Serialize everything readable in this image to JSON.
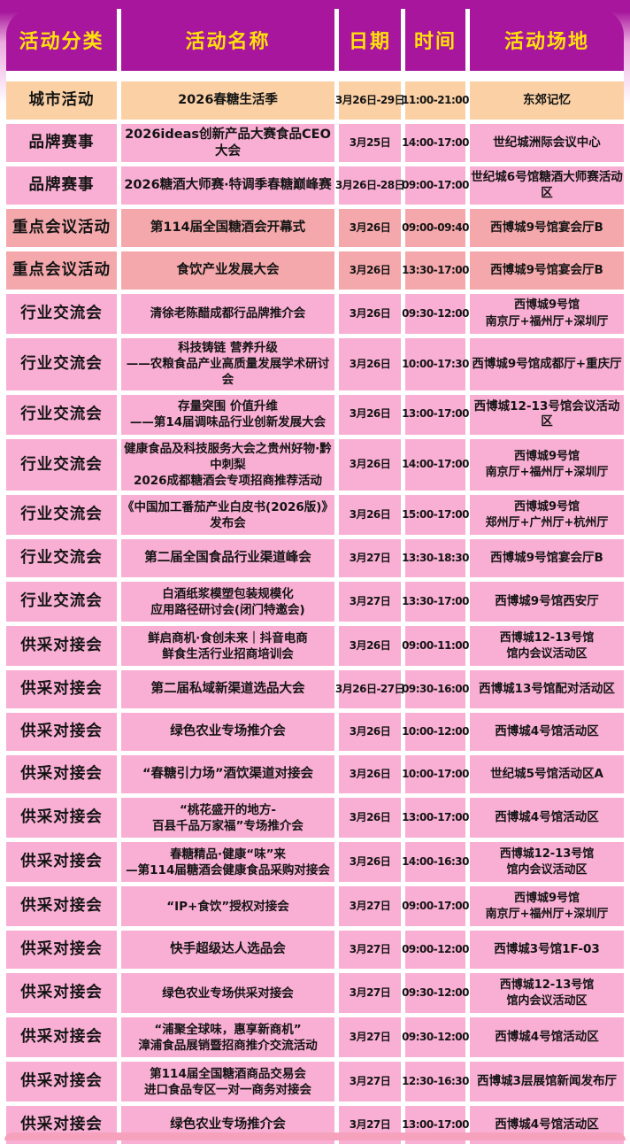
{
  "colors": {
    "header_bg": "#A7169D",
    "header_text": "#FFE10A",
    "row_pink": "#F9AED3",
    "row_peach": "#FAD0A4",
    "row_salmon": "#F5A8AC",
    "cell_text": "#141414",
    "page_bg": "#FFFFFF",
    "bottom_strip": "#F6A2BC"
  },
  "table": {
    "columns": [
      {
        "key": "category",
        "label": "活动分类"
      },
      {
        "key": "name",
        "label": "活动名称"
      },
      {
        "key": "date",
        "label": "日期"
      },
      {
        "key": "time",
        "label": "时间"
      },
      {
        "key": "venue",
        "label": "活动场地"
      }
    ],
    "rows": [
      {
        "tone": "peach",
        "category": "城市活动",
        "name_lines": [
          "2026春糖生活季"
        ],
        "date": "3月26日-29日",
        "time": "11:00-21:00",
        "venue_lines": [
          "东郊记忆"
        ]
      },
      {
        "tone": "pink",
        "category": "品牌赛事",
        "name_lines": [
          "2026ideas创新产品大赛食品CEO大会"
        ],
        "date": "3月25日",
        "time": "14:00-17:00",
        "venue_lines": [
          "世纪城洲际会议中心"
        ]
      },
      {
        "tone": "pink",
        "category": "品牌赛事",
        "name_lines": [
          "2026糖酒大师赛·特调季春糖巅峰赛"
        ],
        "date": "3月26日-28日",
        "time": "09:00-17:00",
        "venue_lines": [
          "世纪城6号馆糖酒大师赛活动区"
        ]
      },
      {
        "tone": "salmon",
        "category": "重点会议活动",
        "name_lines": [
          "第114届全国糖酒会开幕式"
        ],
        "date": "3月26日",
        "time": "09:00-09:40",
        "venue_lines": [
          "西博城9号馆宴会厅B"
        ]
      },
      {
        "tone": "salmon",
        "category": "重点会议活动",
        "name_lines": [
          "食饮产业发展大会"
        ],
        "date": "3月26日",
        "time": "13:30-17:00",
        "venue_lines": [
          "西博城9号馆宴会厅B"
        ]
      },
      {
        "tone": "pink",
        "category": "行业交流会",
        "name_lines": [
          "清徐老陈醋成都行品牌推介会"
        ],
        "date": "3月26日",
        "time": "09:30-12:00",
        "venue_lines": [
          "西博城9号馆",
          "南京厅+福州厅+深圳厅"
        ]
      },
      {
        "tone": "pink",
        "category": "行业交流会",
        "name_lines": [
          "科技铸链 营养升级",
          "——农粮食品产业高质量发展学术研讨会"
        ],
        "date": "3月26日",
        "time": "10:00-17:30",
        "venue_lines": [
          "西博城9号馆成都厅+重庆厅"
        ]
      },
      {
        "tone": "pink",
        "category": "行业交流会",
        "name_lines": [
          "存量突围 价值升维",
          "——第14届调味品行业创新发展大会"
        ],
        "date": "3月26日",
        "time": "13:00-17:00",
        "venue_lines": [
          "西博城12-13号馆会议活动区"
        ]
      },
      {
        "tone": "pink",
        "category": "行业交流会",
        "name_small": true,
        "name_lines": [
          "健康食品及科技服务大会之贵州好物·黔中刺梨",
          "2026成都糖酒会专项招商推荐活动"
        ],
        "date": "3月26日",
        "time": "14:00-17:00",
        "venue_lines": [
          "西博城9号馆",
          "南京厅+福州厅+深圳厅"
        ]
      },
      {
        "tone": "pink",
        "category": "行业交流会",
        "name_lines": [
          "《中国加工番茄产业白皮书(2026版)》发布会"
        ],
        "date": "3月26日",
        "time": "15:00-17:00",
        "venue_lines": [
          "西博城9号馆",
          "郑州厅+广州厅+杭州厅"
        ]
      },
      {
        "tone": "pink",
        "category": "行业交流会",
        "name_lines": [
          "第二届全国食品行业渠道峰会"
        ],
        "date": "3月27日",
        "time": "13:30-18:30",
        "venue_lines": [
          "西博城9号馆宴会厅B"
        ]
      },
      {
        "tone": "pink",
        "category": "行业交流会",
        "name_lines": [
          "白酒纸浆模塑包装规模化",
          "应用路径研讨会(闭门特邀会)"
        ],
        "date": "3月27日",
        "time": "13:30-17:00",
        "venue_lines": [
          "西博城9号馆西安厅"
        ]
      },
      {
        "tone": "pink",
        "category": "供采对接会",
        "name_lines": [
          "鲜启商机·食创未来｜抖音电商",
          "鲜食生活行业招商培训会"
        ],
        "date": "3月26日",
        "time": "09:00-11:00",
        "venue_lines": [
          "西博城12-13号馆",
          "馆内会议活动区"
        ]
      },
      {
        "tone": "pink",
        "category": "供采对接会",
        "name_lines": [
          "第二届私域新渠道选品大会"
        ],
        "date": "3月26日-27日",
        "time": "09:30-16:00",
        "venue_lines": [
          "西博城13号馆配对活动区"
        ]
      },
      {
        "tone": "pink",
        "category": "供采对接会",
        "name_lines": [
          "绿色农业专场推介会"
        ],
        "date": "3月26日",
        "time": "10:00-12:00",
        "venue_lines": [
          "西博城4号馆活动区"
        ]
      },
      {
        "tone": "pink",
        "category": "供采对接会",
        "name_lines": [
          "“春糖引力场”酒饮渠道对接会"
        ],
        "date": "3月26日",
        "time": "10:00-17:00",
        "venue_lines": [
          "世纪城5号馆活动区A"
        ]
      },
      {
        "tone": "pink",
        "category": "供采对接会",
        "name_lines": [
          "“桃花盛开的地方-",
          "百县千品万家福”专场推介会"
        ],
        "date": "3月26日",
        "time": "13:00-17:00",
        "venue_lines": [
          "西博城4号馆活动区"
        ]
      },
      {
        "tone": "pink",
        "category": "供采对接会",
        "name_lines": [
          "春糖精品·健康“味”来",
          "—第114届糖酒会健康食品采购对接会"
        ],
        "date": "3月26日",
        "time": "14:00-16:30",
        "venue_lines": [
          "西博城12-13号馆",
          "馆内会议活动区"
        ]
      },
      {
        "tone": "pink",
        "category": "供采对接会",
        "name_lines": [
          "“IP+食饮”授权对接会"
        ],
        "date": "3月27日",
        "time": "09:00-17:00",
        "venue_lines": [
          "西博城9号馆",
          "南京厅+福州厅+深圳厅"
        ]
      },
      {
        "tone": "pink",
        "category": "供采对接会",
        "name_lines": [
          "快手超级达人选品会"
        ],
        "date": "3月27日",
        "time": "09:00-12:00",
        "venue_lines": [
          "西博城3号馆1F-03"
        ]
      },
      {
        "tone": "pink",
        "category": "供采对接会",
        "name_lines": [
          "绿色农业专场供采对接会"
        ],
        "date": "3月27日",
        "time": "09:30-12:00",
        "venue_lines": [
          "西博城12-13号馆",
          "馆内会议活动区"
        ]
      },
      {
        "tone": "pink",
        "category": "供采对接会",
        "name_lines": [
          "“浦聚全球味，惠享新商机”",
          "漳浦食品展销暨招商推介交流活动"
        ],
        "date": "3月27日",
        "time": "09:30-12:00",
        "venue_lines": [
          "西博城4号馆活动区"
        ]
      },
      {
        "tone": "pink",
        "category": "供采对接会",
        "name_lines": [
          "第114届全国糖酒商品交易会",
          "进口食品专区一对一商务对接会"
        ],
        "date": "3月27日",
        "time": "12:30-16:30",
        "venue_lines": [
          "西博城3层展馆新闻发布厅"
        ]
      },
      {
        "tone": "pink",
        "category": "供采对接会",
        "name_lines": [
          "绿色农业专场推介会"
        ],
        "date": "3月27日",
        "time": "13:00-17:00",
        "venue_lines": [
          "西博城4号馆活动区"
        ]
      }
    ]
  }
}
